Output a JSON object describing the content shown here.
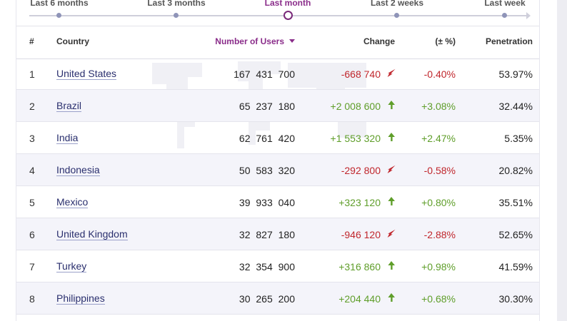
{
  "colors": {
    "accent": "#8a2d8a",
    "negative": "#c0262c",
    "positive": "#5f9e2a",
    "link": "#2a2f6e",
    "row_alt": "#f4f4fa"
  },
  "period_slider": {
    "stops": [
      {
        "label": "Last 6 months",
        "active": false
      },
      {
        "label": "Last 3 months",
        "active": false
      },
      {
        "label": "Last month",
        "active": true
      },
      {
        "label": "Last 2 weeks",
        "active": false
      },
      {
        "label": "Last week",
        "active": false
      }
    ]
  },
  "table": {
    "headers": {
      "rank": "#",
      "country": "Country",
      "users": "Number of Users",
      "change": "Change",
      "pct": "(± %)",
      "penetration": "Penetration"
    },
    "sorted_by": "users",
    "sort_direction_icon": "caret-down-icon",
    "rows": [
      {
        "rank": "1",
        "country": "United States",
        "users": "167 431 700",
        "change": "-668 740",
        "trend": "down",
        "pct": "-0.40%",
        "penetration": "53.97%"
      },
      {
        "rank": "2",
        "country": "Brazil",
        "users": "65 237 180",
        "change": "+2 008 600",
        "trend": "up",
        "pct": "+3.08%",
        "penetration": "32.44%"
      },
      {
        "rank": "3",
        "country": "India",
        "users": "62 761 420",
        "change": "+1 553 320",
        "trend": "up",
        "pct": "+2.47%",
        "penetration": "5.35%"
      },
      {
        "rank": "4",
        "country": "Indonesia",
        "users": "50 583 320",
        "change": "-292 800",
        "trend": "down",
        "pct": "-0.58%",
        "penetration": "20.82%"
      },
      {
        "rank": "5",
        "country": "Mexico",
        "users": "39 933 040",
        "change": "+323 120",
        "trend": "up",
        "pct": "+0.80%",
        "penetration": "35.51%"
      },
      {
        "rank": "6",
        "country": "United Kingdom",
        "users": "32 827 180",
        "change": "-946 120",
        "trend": "down",
        "pct": "-2.88%",
        "penetration": "52.65%"
      },
      {
        "rank": "7",
        "country": "Turkey",
        "users": "32 354 900",
        "change": "+316 860",
        "trend": "up",
        "pct": "+0.98%",
        "penetration": "41.59%"
      },
      {
        "rank": "8",
        "country": "Philippines",
        "users": "30 265 200",
        "change": "+204 440",
        "trend": "up",
        "pct": "+0.68%",
        "penetration": "30.30%"
      }
    ]
  }
}
